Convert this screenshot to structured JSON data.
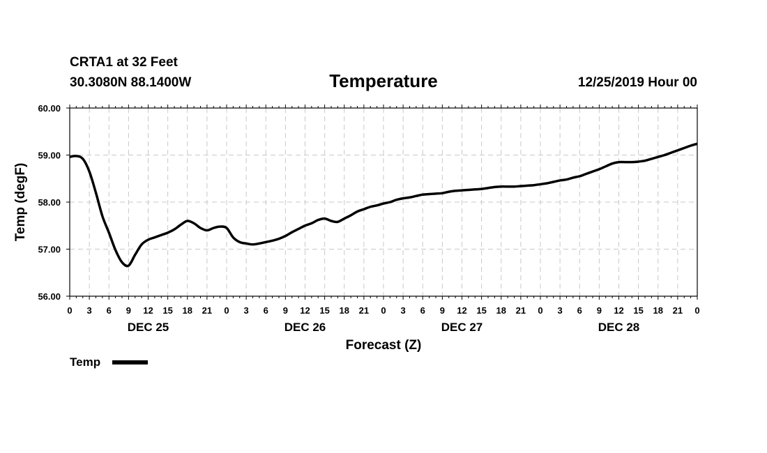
{
  "header": {
    "station": "CRTA1 at 32 Feet",
    "coords": "30.3080N 88.1400W",
    "title": "Temperature",
    "run": "12/25/2019 Hour 00"
  },
  "chart_data": {
    "type": "line",
    "title": "Temperature",
    "xlabel": "Forecast (Z)",
    "ylabel": "Temp (degF)",
    "ylim": [
      56.0,
      60.0
    ],
    "xlim": [
      0,
      96
    ],
    "y_ticks": [
      "56.00",
      "57.00",
      "58.00",
      "59.00",
      "60.00"
    ],
    "x_tick_labels": [
      "0",
      "3",
      "6",
      "9",
      "12",
      "15",
      "18",
      "21",
      "0",
      "3",
      "6",
      "9",
      "12",
      "15",
      "18",
      "21",
      "0",
      "3",
      "6",
      "9",
      "12",
      "15",
      "18",
      "21",
      "0",
      "3",
      "6",
      "9",
      "12",
      "15",
      "18",
      "21",
      "0"
    ],
    "day_labels": [
      {
        "label": "DEC 25",
        "hour": 12
      },
      {
        "label": "DEC 26",
        "hour": 36
      },
      {
        "label": "DEC 27",
        "hour": 60
      },
      {
        "label": "DEC 28",
        "hour": 84
      }
    ],
    "grid": true,
    "legend": "bottom-left",
    "series": [
      {
        "name": "Temp",
        "color": "#000000",
        "x": [
          0,
          1,
          2,
          3,
          4,
          5,
          6,
          7,
          8,
          9,
          10,
          11,
          12,
          13,
          14,
          15,
          16,
          17,
          18,
          19,
          20,
          21,
          22,
          23,
          24,
          25,
          26,
          27,
          28,
          29,
          30,
          31,
          32,
          33,
          34,
          35,
          36,
          37,
          38,
          39,
          40,
          41,
          42,
          43,
          44,
          45,
          46,
          47,
          48,
          49,
          50,
          51,
          52,
          53,
          54,
          55,
          56,
          57,
          58,
          59,
          60,
          61,
          62,
          63,
          64,
          65,
          66,
          67,
          68,
          69,
          70,
          71,
          72,
          73,
          74,
          75,
          76,
          77,
          78,
          79,
          80,
          81,
          82,
          83,
          84,
          85,
          86,
          87,
          88,
          89,
          90,
          91,
          92,
          93,
          94,
          95,
          96
        ],
        "values": [
          58.96,
          58.98,
          58.92,
          58.65,
          58.2,
          57.7,
          57.35,
          56.98,
          56.72,
          56.65,
          56.88,
          57.1,
          57.2,
          57.25,
          57.3,
          57.35,
          57.42,
          57.52,
          57.6,
          57.55,
          57.45,
          57.4,
          57.45,
          57.48,
          57.45,
          57.25,
          57.15,
          57.12,
          57.1,
          57.12,
          57.15,
          57.18,
          57.22,
          57.28,
          57.36,
          57.43,
          57.5,
          57.55,
          57.62,
          57.65,
          57.6,
          57.58,
          57.65,
          57.72,
          57.8,
          57.85,
          57.9,
          57.93,
          57.97,
          58.0,
          58.05,
          58.08,
          58.1,
          58.13,
          58.16,
          58.17,
          58.18,
          58.19,
          58.22,
          58.24,
          58.25,
          58.26,
          58.27,
          58.28,
          58.3,
          58.32,
          58.33,
          58.33,
          58.33,
          58.34,
          58.35,
          58.36,
          58.38,
          58.4,
          58.43,
          58.46,
          58.48,
          58.52,
          58.55,
          58.6,
          58.65,
          58.7,
          58.76,
          58.82,
          58.85,
          58.85,
          58.85,
          58.86,
          58.88,
          58.92,
          58.96,
          59.0,
          59.05,
          59.1,
          59.15,
          59.2,
          59.24
        ]
      }
    ]
  }
}
